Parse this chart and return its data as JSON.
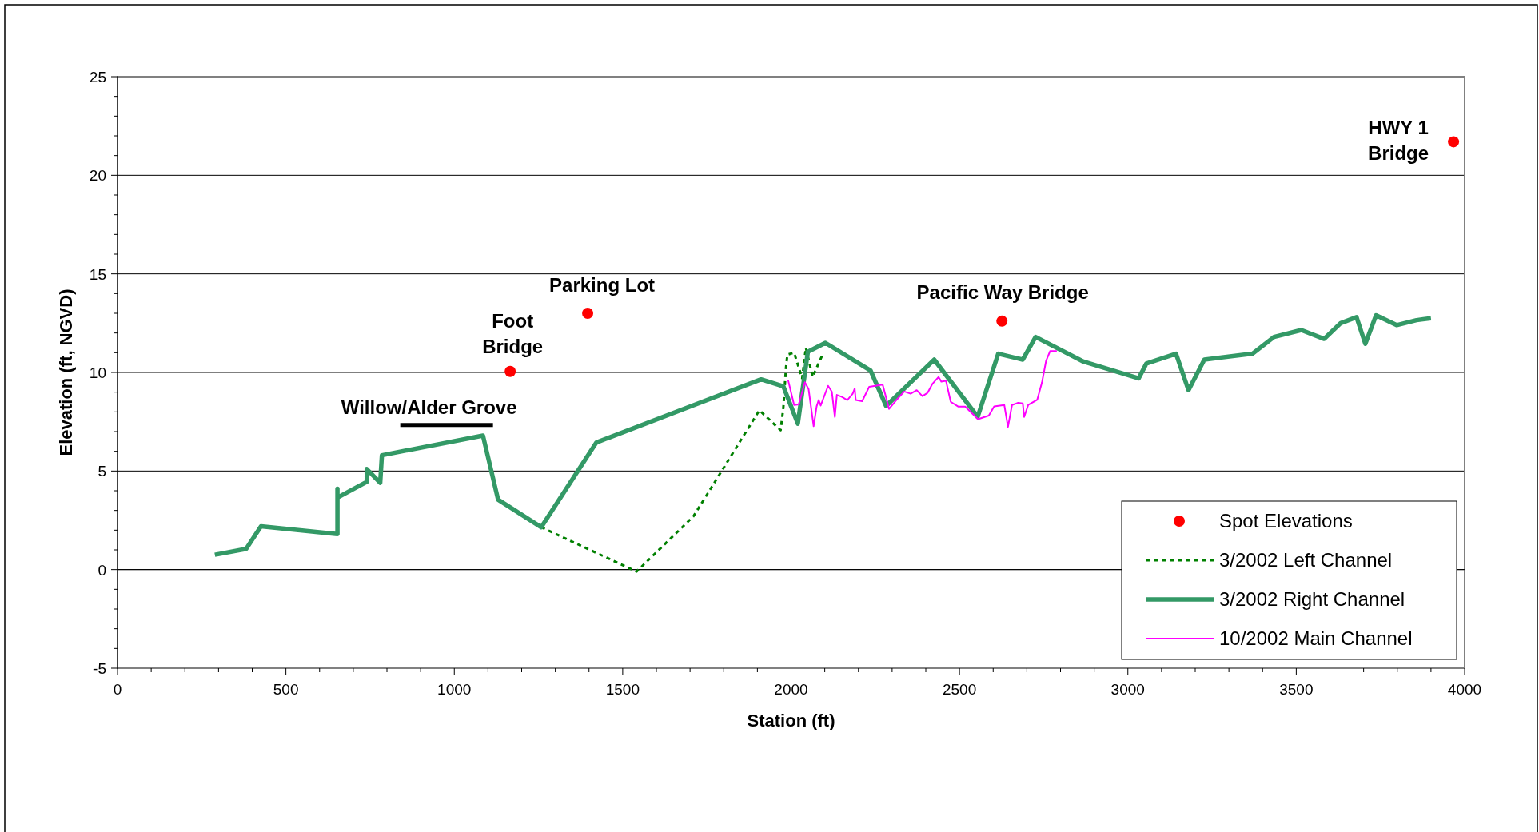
{
  "chart_data": {
    "type": "line",
    "xlabel": "Station (ft)",
    "ylabel": "Elevation (ft, NGVD)",
    "xlim": [
      0,
      4000
    ],
    "ylim": [
      -5,
      25
    ],
    "xticks": [
      0,
      {
        "value": 100,
        "label": null
      },
      {
        "value": 200,
        "label": null
      },
      {
        "value": 300,
        "label": null
      },
      {
        "value": 400,
        "label": null
      },
      500,
      {
        "value": 600,
        "label": null
      },
      {
        "value": 700,
        "label": null
      },
      {
        "value": 800,
        "label": null
      },
      {
        "value": 900,
        "label": null
      },
      1000,
      {
        "value": 1100,
        "label": null
      },
      {
        "value": 1200,
        "label": null
      },
      {
        "value": 1300,
        "label": null
      },
      {
        "value": 1400,
        "label": null
      },
      1500,
      {
        "value": 1600,
        "label": null
      },
      {
        "value": 1700,
        "label": null
      },
      {
        "value": 1800,
        "label": null
      },
      {
        "value": 1900,
        "label": null
      },
      2000,
      {
        "value": 2100,
        "label": null
      },
      {
        "value": 2200,
        "label": null
      },
      {
        "value": 2300,
        "label": null
      },
      {
        "value": 2400,
        "label": null
      },
      2500,
      {
        "value": 2600,
        "label": null
      },
      {
        "value": 2700,
        "label": null
      },
      {
        "value": 2800,
        "label": null
      },
      {
        "value": 2900,
        "label": null
      },
      3000,
      {
        "value": 3100,
        "label": null
      },
      {
        "value": 3200,
        "label": null
      },
      {
        "value": 3300,
        "label": null
      },
      {
        "value": 3400,
        "label": null
      },
      3500,
      {
        "value": 3600,
        "label": null
      },
      {
        "value": 3700,
        "label": null
      },
      {
        "value": 3800,
        "label": null
      },
      {
        "value": 3900,
        "label": null
      },
      4000
    ],
    "yticks": [
      -5,
      {
        "value": -4,
        "label": null
      },
      {
        "value": -3,
        "label": null
      },
      {
        "value": -2,
        "label": null
      },
      {
        "value": -1,
        "label": null
      },
      0,
      {
        "value": 1,
        "label": null
      },
      {
        "value": 2,
        "label": null
      },
      {
        "value": 3,
        "label": null
      },
      {
        "value": 4,
        "label": null
      },
      5,
      {
        "value": 6,
        "label": null
      },
      {
        "value": 7,
        "label": null
      },
      {
        "value": 8,
        "label": null
      },
      {
        "value": 9,
        "label": null
      },
      10,
      {
        "value": 11,
        "label": null
      },
      {
        "value": 12,
        "label": null
      },
      {
        "value": 13,
        "label": null
      },
      {
        "value": 14,
        "label": null
      },
      15,
      {
        "value": 16,
        "label": null
      },
      {
        "value": 17,
        "label": null
      },
      {
        "value": 18,
        "label": null
      },
      {
        "value": 19,
        "label": null
      },
      20,
      {
        "value": 21,
        "label": null
      },
      {
        "value": 22,
        "label": null
      },
      {
        "value": 23,
        "label": null
      },
      {
        "value": 24,
        "label": null
      },
      25
    ],
    "grid": "y",
    "legend": "bottom right",
    "series": [
      {
        "name": "Spot Elevations",
        "type": "scatter",
        "color": "#ff0000",
        "marker": "circle",
        "x": [
          1166,
          1396,
          2626,
          3967
        ],
        "values": [
          10.05,
          13.0,
          12.6,
          21.7
        ]
      },
      {
        "name": "3/2002 Left Channel",
        "color": "#008000",
        "line_style": "dotted",
        "x": [
          1258,
          1541,
          1710,
          1906,
          1969,
          1977,
          1985,
          1989,
          2009,
          2033,
          2044,
          2064,
          2096
        ],
        "values": [
          2.15,
          -0.1,
          2.7,
          8.08,
          7.07,
          8.2,
          10.25,
          10.9,
          11.0,
          9.7,
          11.25,
          9.77,
          11.0
        ]
      },
      {
        "name": "3/2002 Right Channel",
        "color": "#339966",
        "line_style": "solid",
        "x": [
          289,
          382,
          426,
          653,
          653,
          653,
          740,
          740,
          780,
          785,
          1085,
          1130,
          1258,
          1422,
          1911,
          1977,
          2020,
          2050,
          2102,
          2236,
          2282,
          2425,
          2554,
          2615,
          2688,
          2726,
          2868,
          3032,
          3055,
          3143,
          3180,
          3227,
          3370,
          3434,
          3515,
          3583,
          3632,
          3679,
          3705,
          3737,
          3798,
          3857,
          3900
        ],
        "values": [
          0.75,
          1.05,
          2.2,
          1.8,
          4.1,
          3.65,
          4.45,
          5.1,
          4.4,
          5.8,
          6.8,
          3.55,
          2.15,
          6.45,
          9.65,
          9.3,
          7.4,
          11.05,
          11.5,
          10.1,
          8.3,
          10.65,
          7.75,
          10.95,
          10.65,
          11.8,
          10.55,
          9.7,
          10.45,
          10.95,
          9.1,
          10.65,
          10.95,
          11.8,
          12.15,
          11.7,
          12.5,
          12.8,
          11.45,
          12.9,
          12.4,
          12.65,
          12.75
        ]
      },
      {
        "name": "10/2002 Main Channel",
        "color": "#ff00ff",
        "line_style": "solid",
        "x": [
          1991,
          2009,
          2023,
          2041,
          2052,
          2067,
          2076,
          2082,
          2088,
          2110,
          2121,
          2130,
          2136,
          2151,
          2167,
          2183,
          2189,
          2192,
          2211,
          2232,
          2272,
          2291,
          2310,
          2336,
          2355,
          2373,
          2390,
          2405,
          2420,
          2438,
          2446,
          2460,
          2474,
          2496,
          2517,
          2555,
          2587,
          2603,
          2633,
          2644,
          2656,
          2674,
          2688,
          2692,
          2704,
          2731,
          2745,
          2757,
          2769,
          2789
        ],
        "values": [
          9.63,
          8.35,
          8.38,
          9.5,
          9.16,
          7.27,
          8.28,
          8.6,
          8.32,
          9.32,
          9.03,
          7.74,
          8.86,
          8.76,
          8.6,
          8.92,
          9.19,
          8.6,
          8.54,
          9.27,
          9.38,
          8.15,
          8.55,
          9.03,
          8.92,
          9.1,
          8.8,
          8.96,
          9.43,
          9.77,
          9.53,
          9.57,
          8.51,
          8.27,
          8.27,
          7.63,
          7.81,
          8.28,
          8.35,
          7.24,
          8.35,
          8.46,
          8.43,
          7.74,
          8.35,
          8.62,
          9.5,
          10.58,
          11.08,
          11.08
        ]
      }
    ],
    "annotations": [
      {
        "text": "Foot\nBridge",
        "x": 1166,
        "y": 10.05
      },
      {
        "text": "Parking Lot",
        "x": 1396,
        "y": 13.0
      },
      {
        "text": "Pacific Way Bridge",
        "x": 2626,
        "y": 12.6
      },
      {
        "text": "HWY 1\nBridge",
        "x": 3967,
        "y": 21.7
      },
      "Willow/Alder Grove"
    ]
  }
}
